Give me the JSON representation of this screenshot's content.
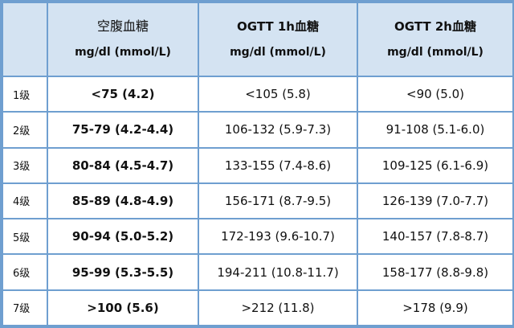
{
  "header": {
    "col1_title": "空腹血糖",
    "col1_unit": "mg/dl (mmol/L)",
    "col2_title": "OGTT 1h血糖",
    "col2_unit": "mg/dl (mmol/L)",
    "col3_title": "OGTT 2h血糖",
    "col3_unit": "mg/dl (mmol/L)"
  },
  "rows": [
    {
      "grade": "1级",
      "fasting": "<75 (4.2)",
      "ogtt1h": "<105 (5.8)",
      "ogtt2h": "<90 (5.0)"
    },
    {
      "grade": "2级",
      "fasting": "75-79 (4.2-4.4)",
      "ogtt1h": "106-132 (5.9-7.3)",
      "ogtt2h": "91-108 (5.1-6.0)"
    },
    {
      "grade": "3级",
      "fasting": "80-84 (4.5-4.7)",
      "ogtt1h": "133-155 (7.4-8.6)",
      "ogtt2h": "109-125 (6.1-6.9)"
    },
    {
      "grade": "4级",
      "fasting": "85-89 (4.8-4.9)",
      "ogtt1h": "156-171 (8.7-9.5)",
      "ogtt2h": "126-139 (7.0-7.7)"
    },
    {
      "grade": "5级",
      "fasting": "90-94 (5.0-5.2)",
      "ogtt1h": "172-193 (9.6-10.7)",
      "ogtt2h": "140-157 (7.8-8.7)"
    },
    {
      "grade": "6级",
      "fasting": "95-99 (5.3-5.5)",
      "ogtt1h": "194-211 (10.8-11.7)",
      "ogtt2h": "158-177 (8.8-9.8)"
    },
    {
      "grade": "7级",
      "fasting": ">100 (5.6)",
      "ogtt1h": ">212 (11.8)",
      "ogtt2h": ">178 (9.9)"
    }
  ]
}
